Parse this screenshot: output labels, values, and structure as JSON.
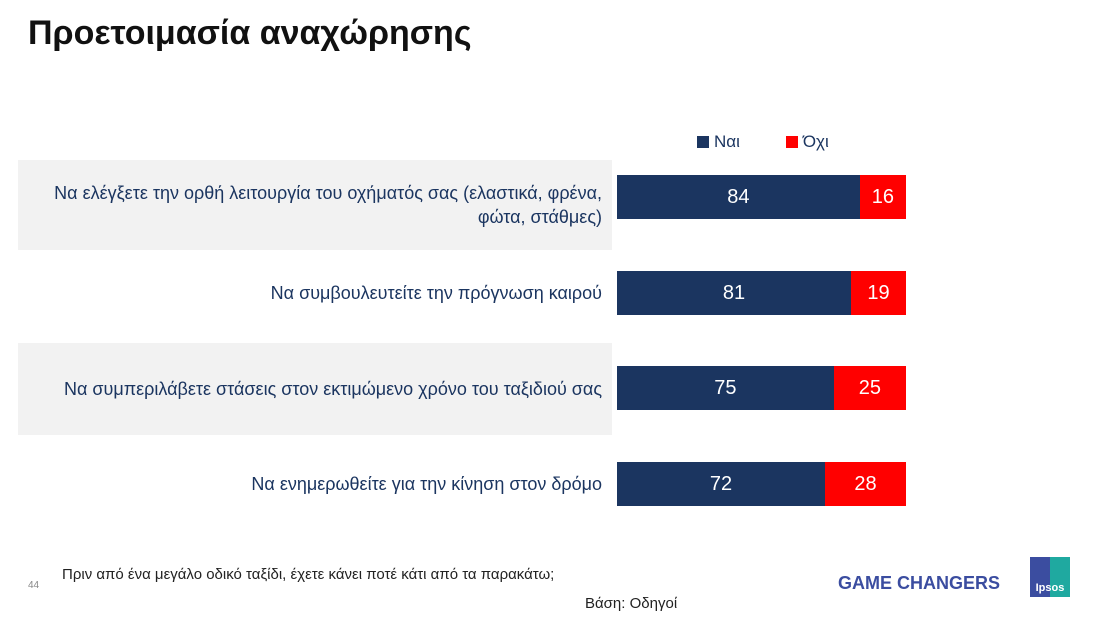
{
  "title": "Προετοιμασία αναχώρησης",
  "chart_data": {
    "type": "bar",
    "orientation": "horizontal-stacked",
    "categories": [
      "Να ελέγξετε την ορθή λειτουργία του οχήματός σας (ελαστικά, φρένα, φώτα, στάθμες)",
      "Να συμβουλευτείτε την πρόγνωση καιρού",
      "Να συμπεριλάβετε στάσεις στον εκτιμώμενο χρόνο του ταξιδιού σας",
      "Να ενημερωθείτε για την κίνηση στον δρόμο"
    ],
    "series": [
      {
        "name": "Ναι",
        "color": "#1b3560",
        "values": [
          84,
          81,
          75,
          72
        ]
      },
      {
        "name": "Όχι",
        "color": "#ff0000",
        "values": [
          16,
          19,
          25,
          28
        ]
      }
    ],
    "xlim": [
      0,
      100
    ],
    "legend": "top"
  },
  "footer": {
    "question": "Πριν από ένα μεγάλο οδικό ταξίδι, έχετε κάνει ποτέ κάτι από τα παρακάτω;",
    "page_number": "44",
    "base": "Βάση: Οδηγοί",
    "tagline": "GAME CHANGERS",
    "logo": "Ipsos"
  }
}
